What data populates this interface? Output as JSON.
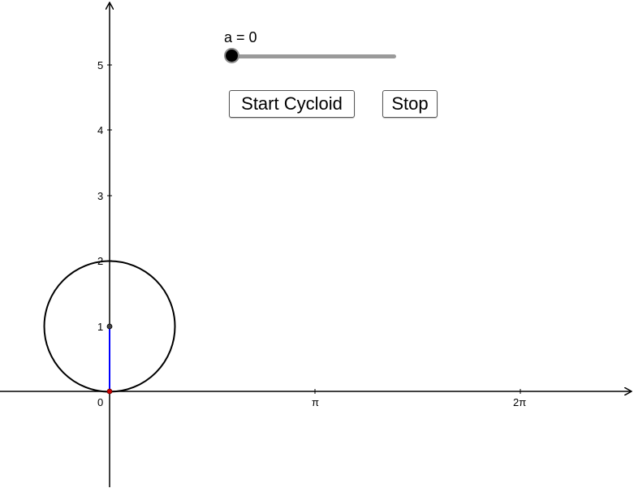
{
  "slider": {
    "label": "a = 0",
    "value": 0
  },
  "buttons": {
    "start_label": "Start Cycloid",
    "stop_label": "Stop"
  },
  "axes": {
    "x_tick_labels": [
      "0",
      "π",
      "2π"
    ],
    "y_tick_labels": [
      "1",
      "2",
      "3",
      "4",
      "5"
    ]
  },
  "colors": {
    "axis": "#000000",
    "circle": "#000000",
    "radius_segment": "#0000ff",
    "contact_point": "#cc0000",
    "center_point": "#444444",
    "slider_track": "#9a9a9a",
    "slider_knob": "#000000"
  }
}
